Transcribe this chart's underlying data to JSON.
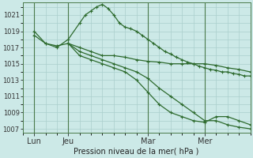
{
  "bg_color": "#cce9e7",
  "grid_color": "#aacfcc",
  "line_color": "#2d6a2d",
  "title": "Pression niveau de la mer( hPa )",
  "ylim": [
    1006.5,
    1022.5
  ],
  "yticks": [
    1007,
    1009,
    1011,
    1013,
    1015,
    1017,
    1019,
    1021
  ],
  "xlim": [
    0,
    20
  ],
  "xtick_positions": [
    1,
    4,
    11,
    16
  ],
  "xtick_labels": [
    "Lun",
    "Jeu",
    "Mar",
    "Mer"
  ],
  "vline_positions": [
    1,
    4,
    11,
    16
  ],
  "series1_x": [
    1,
    2,
    3,
    4,
    5,
    5.5,
    6,
    6.5,
    7,
    7.5,
    8,
    8.5,
    9,
    9.5,
    10,
    10.5,
    11,
    11.5,
    12,
    12.5,
    13,
    13.5,
    14,
    14.5,
    15,
    15.5,
    16,
    16.5,
    17,
    17.5,
    18,
    18.5,
    19,
    19.5,
    20
  ],
  "series1_y": [
    1019,
    1017.5,
    1017,
    1018,
    1020,
    1021,
    1021.5,
    1022,
    1022.3,
    1021.8,
    1021,
    1020,
    1019.5,
    1019.3,
    1019,
    1018.5,
    1018,
    1017.5,
    1017,
    1016.5,
    1016.2,
    1015.8,
    1015.5,
    1015.2,
    1015,
    1014.7,
    1014.5,
    1014.3,
    1014.2,
    1014,
    1014,
    1013.8,
    1013.7,
    1013.5,
    1013.5
  ],
  "series2_x": [
    1,
    2,
    3,
    4,
    5,
    6,
    7,
    8,
    9,
    10,
    11,
    12,
    13,
    14,
    15,
    16,
    17,
    18,
    19,
    20
  ],
  "series2_y": [
    1018.5,
    1017.5,
    1017.2,
    1017.5,
    1017,
    1016.5,
    1016,
    1016,
    1015.8,
    1015.5,
    1015.3,
    1015.2,
    1015,
    1015,
    1015,
    1015,
    1014.8,
    1014.5,
    1014.3,
    1014
  ],
  "series3_x": [
    4,
    5,
    6,
    7,
    8,
    9,
    10,
    11,
    12,
    13,
    14,
    15,
    16,
    17,
    18,
    19,
    20
  ],
  "series3_y": [
    1017.5,
    1016.5,
    1016,
    1015.5,
    1015,
    1014.5,
    1014,
    1013.2,
    1012,
    1011,
    1010,
    1009,
    1008,
    1008,
    1007.5,
    1007.2,
    1007.0
  ],
  "series4_x": [
    4,
    5,
    6,
    7,
    8,
    9,
    10,
    11,
    12,
    13,
    14,
    15,
    16,
    17,
    18,
    19,
    20
  ],
  "series4_y": [
    1017.5,
    1016,
    1015.5,
    1015,
    1014.5,
    1014,
    1013,
    1011.5,
    1010,
    1009,
    1008.5,
    1008,
    1007.8,
    1008.5,
    1008.5,
    1008,
    1007.5
  ]
}
